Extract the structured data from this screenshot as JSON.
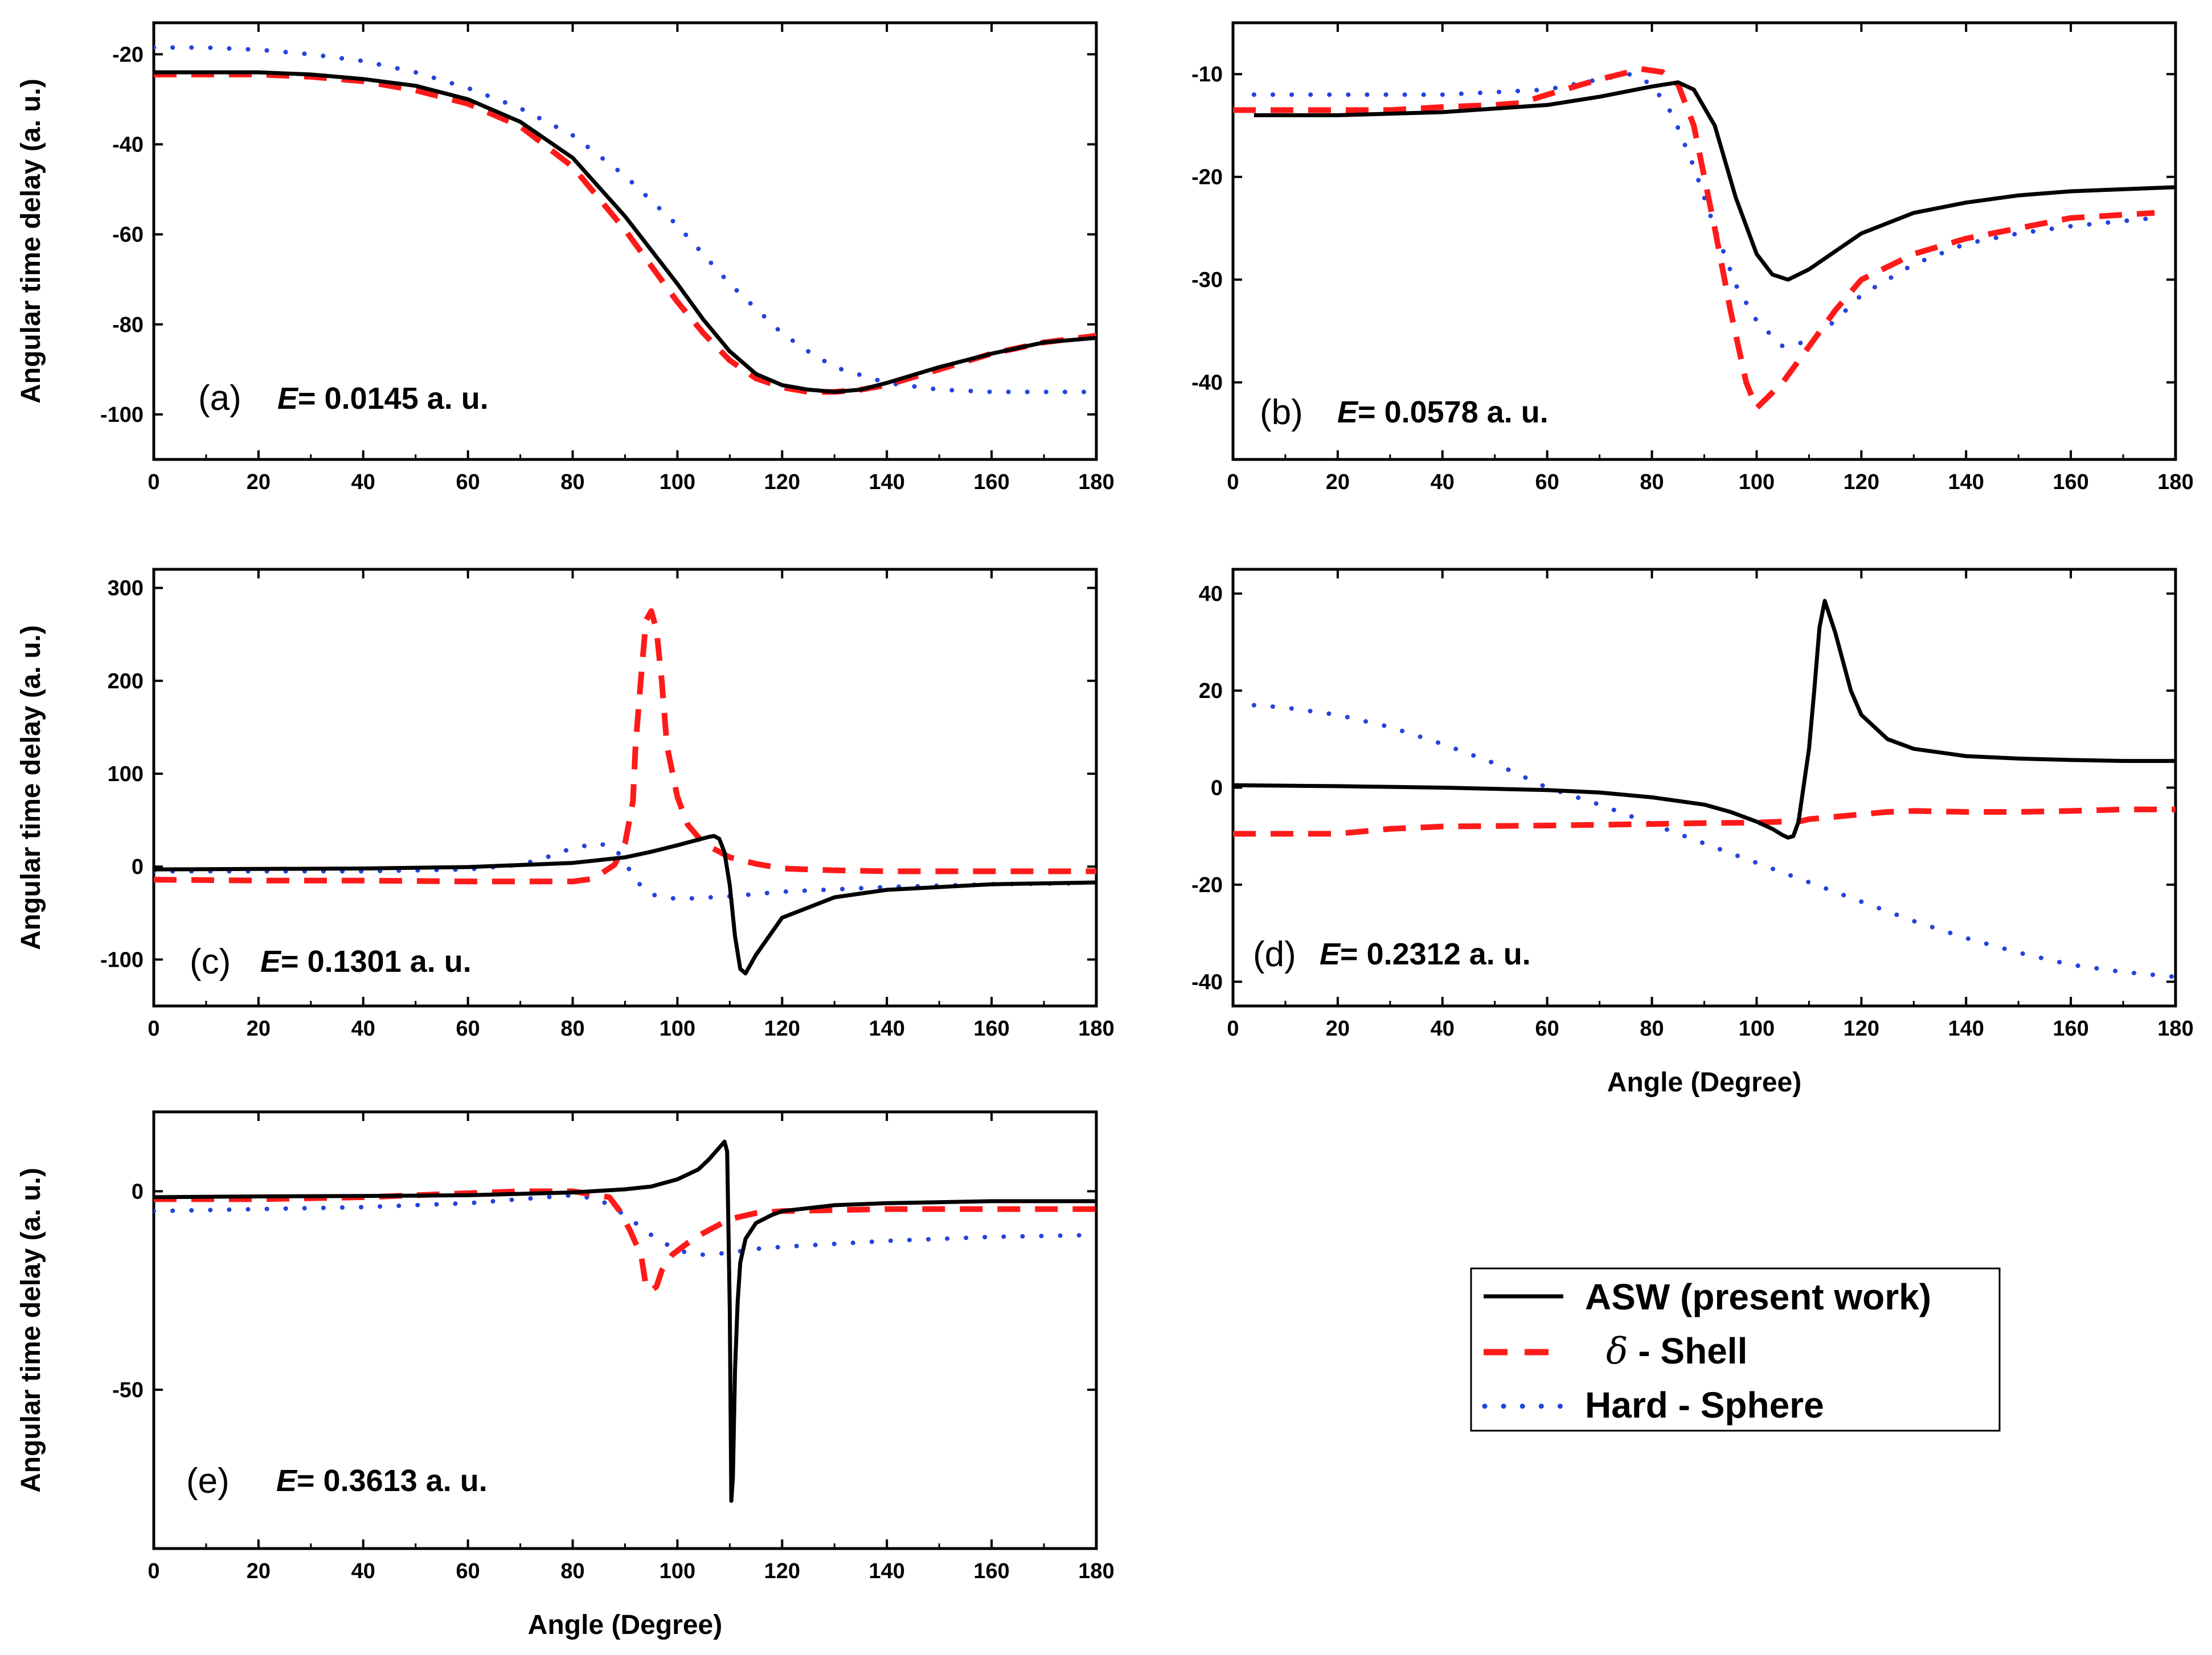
{
  "figure": {
    "legend": {
      "asw": "ASW (present work)",
      "delta_symbol": "δ",
      "shell": " - Shell",
      "hard_sphere": "Hard - Sphere"
    }
  },
  "styles": {
    "asw": {
      "color": "#000000",
      "dash": "solid"
    },
    "shell": {
      "color": "#ff1a1a",
      "dash": "dashed"
    },
    "hard_sphere": {
      "color": "#2244dd",
      "dash": "dotted"
    }
  },
  "chart_data": [
    {
      "id": "a",
      "type": "line",
      "panel_label": "(a)",
      "energy_symbol": "E",
      "energy_value": "= 0.0145 a. u.",
      "xlabel": "",
      "ylabel": "Angular time delay (a. u.)",
      "xlim": [
        0,
        180
      ],
      "ylim": [
        -110,
        -13
      ],
      "xticks": [
        0,
        20,
        40,
        60,
        80,
        100,
        120,
        140,
        160,
        180
      ],
      "yticks": [
        -20,
        -40,
        -60,
        -80,
        -100
      ],
      "xtick_labels": [
        "0",
        "20",
        "40",
        "60",
        "80",
        "100",
        "120",
        "140",
        "160",
        "180"
      ],
      "ytick_labels": [
        "-20",
        "-40",
        "-60",
        "-80",
        "-100"
      ],
      "series": [
        {
          "name": "ASW (present work)",
          "key": "asw",
          "x": [
            0,
            10,
            20,
            30,
            40,
            50,
            60,
            70,
            80,
            90,
            100,
            105,
            110,
            115,
            120,
            125,
            130,
            135,
            140,
            150,
            160,
            170,
            180
          ],
          "y": [
            -24,
            -24,
            -24,
            -24.5,
            -25.5,
            -27,
            -30,
            -35,
            -43,
            -56,
            -71,
            -79,
            -86,
            -91,
            -93.5,
            -94.5,
            -95,
            -94.5,
            -93,
            -89.5,
            -86.5,
            -84,
            -83
          ]
        },
        {
          "name": "δ - Shell",
          "key": "shell",
          "x": [
            0,
            10,
            20,
            30,
            40,
            50,
            60,
            70,
            80,
            90,
            100,
            105,
            110,
            115,
            120,
            125,
            130,
            135,
            140,
            150,
            160,
            170,
            180
          ],
          "y": [
            -24.5,
            -24.5,
            -24.5,
            -25,
            -26,
            -28,
            -31,
            -36,
            -45,
            -59,
            -75,
            -82,
            -88,
            -92,
            -94,
            -95,
            -95,
            -94.5,
            -93.5,
            -90,
            -86.5,
            -84,
            -82.5
          ]
        },
        {
          "name": "Hard - Sphere",
          "key": "hard_sphere",
          "x": [
            0,
            10,
            20,
            30,
            40,
            50,
            60,
            70,
            80,
            90,
            100,
            110,
            120,
            125,
            130,
            140,
            150,
            160,
            170,
            180
          ],
          "y": [
            -18.5,
            -18.5,
            -19,
            -20,
            -21.5,
            -24,
            -27.5,
            -32,
            -38,
            -47,
            -58,
            -71,
            -82,
            -86,
            -89.5,
            -93,
            -94.5,
            -95,
            -95,
            -95
          ]
        }
      ]
    },
    {
      "id": "b",
      "type": "line",
      "panel_label": "(b)",
      "energy_symbol": "E",
      "energy_value": "= 0.0578 a. u.",
      "xlabel": "",
      "ylabel": "",
      "xlim": [
        0,
        180
      ],
      "ylim": [
        -47.5,
        -5
      ],
      "xticks": [
        0,
        20,
        40,
        60,
        80,
        100,
        120,
        140,
        160,
        180
      ],
      "yticks": [
        -10,
        -20,
        -30,
        -40
      ],
      "xtick_labels": [
        "0",
        "20",
        "40",
        "60",
        "80",
        "100",
        "120",
        "140",
        "160",
        "180"
      ],
      "ytick_labels": [
        "-10",
        "-20",
        "-30",
        "-40"
      ],
      "series": [
        {
          "name": "ASW (present work)",
          "key": "asw",
          "x": [
            4,
            20,
            40,
            60,
            70,
            80,
            85,
            88,
            92,
            96,
            100,
            103,
            106,
            110,
            120,
            130,
            140,
            150,
            160,
            170,
            180
          ],
          "y": [
            -14,
            -14,
            -13.7,
            -13,
            -12.2,
            -11.2,
            -10.8,
            -11.5,
            -15,
            -22,
            -27.5,
            -29.5,
            -30,
            -29,
            -25.5,
            -23.5,
            -22.5,
            -21.8,
            -21.4,
            -21.2,
            -21
          ]
        },
        {
          "name": "δ - Shell",
          "key": "shell",
          "x": [
            0,
            10,
            20,
            30,
            40,
            50,
            55,
            60,
            70,
            78,
            82,
            85,
            88,
            92,
            95,
            98,
            100,
            105,
            110,
            115,
            120,
            130,
            140,
            150,
            160,
            176
          ],
          "y": [
            -13.5,
            -13.5,
            -13.5,
            -13.5,
            -13.2,
            -13,
            -12.8,
            -12,
            -10.5,
            -9.5,
            -9.8,
            -11,
            -15,
            -25,
            -33,
            -40,
            -42.5,
            -40,
            -36.5,
            -33,
            -30,
            -27.5,
            -26,
            -25,
            -24,
            -23.5
          ]
        },
        {
          "name": "Hard - Sphere",
          "key": "hard_sphere",
          "x": [
            4,
            20,
            40,
            60,
            70,
            76,
            80,
            84,
            88,
            92,
            96,
            100,
            105,
            110,
            115,
            120,
            130,
            140,
            150,
            160,
            176
          ],
          "y": [
            -12,
            -12,
            -12,
            -11.5,
            -10.5,
            -10,
            -11,
            -14,
            -19,
            -25,
            -30.5,
            -34,
            -36.5,
            -36,
            -34,
            -31.5,
            -28.5,
            -26.5,
            -25.5,
            -24.8,
            -24
          ]
        }
      ]
    },
    {
      "id": "c",
      "type": "line",
      "panel_label": "(c)",
      "energy_symbol": "E",
      "energy_value": "= 0.1301 a. u.",
      "xlabel": "",
      "ylabel": "Angular time delay (a. u.)",
      "xlim": [
        0,
        180
      ],
      "ylim": [
        -150,
        320
      ],
      "xticks": [
        0,
        20,
        40,
        60,
        80,
        100,
        120,
        140,
        160,
        180
      ],
      "yticks": [
        300,
        200,
        100,
        0,
        -100
      ],
      "xtick_labels": [
        "0",
        "20",
        "40",
        "60",
        "80",
        "100",
        "120",
        "140",
        "160",
        "180"
      ],
      "ytick_labels": [
        "300",
        "200",
        "100",
        "0",
        "-100"
      ],
      "series": [
        {
          "name": "ASW (present work)",
          "key": "asw",
          "x": [
            0,
            20,
            40,
            60,
            80,
            90,
            95,
            100,
            104,
            106,
            107,
            108,
            109,
            110,
            111,
            112,
            113,
            115,
            120,
            130,
            140,
            160,
            180
          ],
          "y": [
            -3,
            -2.5,
            -2,
            -0.5,
            4,
            10,
            16,
            23,
            29,
            32,
            33,
            30,
            15,
            -20,
            -75,
            -110,
            -115,
            -95,
            -55,
            -33,
            -25,
            -19,
            -17
          ]
        },
        {
          "name": "δ - Shell",
          "key": "shell",
          "x": [
            0,
            20,
            40,
            60,
            70,
            80,
            84,
            88,
            90,
            91.5,
            92,
            93,
            94,
            95,
            96,
            97,
            98,
            100,
            102,
            105,
            110,
            115,
            120,
            130,
            140,
            160,
            180
          ],
          "y": [
            -14,
            -15,
            -15,
            -16,
            -16,
            -16,
            -13,
            2,
            25,
            70,
            130,
            200,
            265,
            275,
            255,
            200,
            130,
            75,
            45,
            25,
            10,
            3,
            -2,
            -4,
            -5,
            -5,
            -5
          ]
        },
        {
          "name": "Hard - Sphere",
          "key": "hard_sphere",
          "x": [
            0,
            20,
            40,
            60,
            70,
            75,
            80,
            85,
            88,
            90,
            92,
            95,
            100,
            110,
            120,
            140,
            160,
            175
          ],
          "y": [
            -5,
            -5,
            -5,
            -3,
            2,
            10,
            20,
            25,
            20,
            5,
            -15,
            -30,
            -35,
            -32,
            -27,
            -22,
            -19,
            -18
          ]
        }
      ]
    },
    {
      "id": "d",
      "type": "line",
      "panel_label": "(d)",
      "energy_symbol": "E",
      "energy_value": "= 0.2312 a. u.",
      "xlabel": "Angle (Degree)",
      "ylabel": "",
      "xlim": [
        0,
        180
      ],
      "ylim": [
        -45,
        45
      ],
      "xticks": [
        0,
        20,
        40,
        60,
        80,
        100,
        120,
        140,
        160,
        180
      ],
      "yticks": [
        40,
        20,
        0,
        -20,
        -40
      ],
      "xtick_labels": [
        "0",
        "20",
        "40",
        "60",
        "80",
        "100",
        "120",
        "140",
        "160",
        "180"
      ],
      "ytick_labels": [
        "40",
        "20",
        "0",
        "-20",
        "-40"
      ],
      "series": [
        {
          "name": "ASW (present work)",
          "key": "asw",
          "x": [
            0,
            20,
            40,
            60,
            70,
            80,
            90,
            95,
            100,
            103,
            105,
            106,
            107,
            108,
            110,
            111,
            112,
            113,
            115,
            118,
            120,
            125,
            130,
            140,
            150,
            160,
            170,
            180
          ],
          "y": [
            0.5,
            0.3,
            0,
            -0.5,
            -1,
            -2,
            -3.5,
            -5,
            -7,
            -8.5,
            -9.8,
            -10.3,
            -10,
            -7,
            8,
            20,
            33,
            38.5,
            32,
            20,
            15,
            10,
            8,
            6.5,
            6,
            5.7,
            5.5,
            5.5
          ]
        },
        {
          "name": "δ - Shell",
          "key": "shell",
          "x": [
            0,
            20,
            30,
            40,
            60,
            80,
            90,
            100,
            105,
            108,
            110,
            115,
            120,
            125,
            130,
            140,
            150,
            160,
            170,
            180
          ],
          "y": [
            -9.5,
            -9.5,
            -8.5,
            -8,
            -7.8,
            -7.5,
            -7.3,
            -7.2,
            -7,
            -7,
            -6.5,
            -6,
            -5.5,
            -5,
            -4.8,
            -5,
            -5,
            -4.8,
            -4.5,
            -4.5
          ]
        },
        {
          "name": "Hard - Sphere",
          "key": "hard_sphere",
          "x": [
            4,
            10,
            20,
            30,
            40,
            50,
            60,
            70,
            80,
            90,
            100,
            110,
            120,
            130,
            140,
            150,
            160,
            170,
            180
          ],
          "y": [
            17,
            16.5,
            15,
            12.5,
            9,
            5,
            0,
            -3.5,
            -7.5,
            -11.5,
            -15.5,
            -19.5,
            -23.5,
            -27.5,
            -31,
            -34,
            -36.5,
            -38,
            -39
          ]
        }
      ]
    },
    {
      "id": "e",
      "type": "line",
      "panel_label": "(e)",
      "energy_symbol": "E",
      "energy_value": "= 0.3613 a. u.",
      "xlabel": "Angle (Degree)",
      "ylabel": "Angular time delay (a. u.)",
      "xlim": [
        0,
        180
      ],
      "ylim": [
        -90,
        20
      ],
      "xticks": [
        0,
        20,
        40,
        60,
        80,
        100,
        120,
        140,
        160,
        180
      ],
      "yticks": [
        0,
        -50
      ],
      "xtick_labels": [
        "0",
        "20",
        "40",
        "60",
        "80",
        "100",
        "120",
        "140",
        "160",
        "180"
      ],
      "ytick_labels": [
        "0",
        "-50"
      ],
      "series": [
        {
          "name": "ASW (present work)",
          "key": "asw",
          "x": [
            0,
            20,
            40,
            60,
            80,
            90,
            95,
            100,
            104,
            106,
            108,
            109,
            109.5,
            110,
            110.3,
            110.6,
            111,
            111.5,
            112,
            113,
            115,
            118,
            120,
            130,
            140,
            160,
            180
          ],
          "y": [
            -1.5,
            -1.3,
            -1.2,
            -1,
            -0.3,
            0.5,
            1.2,
            3,
            5.5,
            8,
            11,
            12.5,
            10,
            -30,
            -78,
            -72,
            -45,
            -28,
            -18,
            -12,
            -8,
            -6,
            -5,
            -3.5,
            -3,
            -2.5,
            -2.5
          ]
        },
        {
          "name": "δ - Shell",
          "key": "shell",
          "x": [
            0,
            20,
            40,
            60,
            70,
            80,
            87,
            89,
            91,
            92,
            93,
            94,
            95,
            96,
            97,
            98,
            99,
            100,
            102,
            105,
            110,
            115,
            120,
            140,
            160,
            180
          ],
          "y": [
            -2,
            -2,
            -1.5,
            -0.5,
            0,
            0,
            -1.5,
            -5,
            -10,
            -13,
            -15.5,
            -24,
            -25,
            -24,
            -20,
            -18,
            -16,
            -15,
            -13,
            -10.5,
            -7,
            -5.5,
            -5,
            -4.5,
            -4.5,
            -4.5
          ]
        },
        {
          "name": "Hard - Sphere",
          "key": "hard_sphere",
          "x": [
            0,
            20,
            40,
            60,
            70,
            75,
            80,
            85,
            90,
            95,
            100,
            105,
            110,
            115,
            120,
            140,
            160,
            180
          ],
          "y": [
            -5,
            -4.5,
            -4,
            -3,
            -2,
            -1.5,
            -1,
            -2,
            -6,
            -11,
            -15,
            -16,
            -15.5,
            -14.5,
            -14,
            -12.5,
            -11.5,
            -11
          ]
        }
      ]
    }
  ]
}
